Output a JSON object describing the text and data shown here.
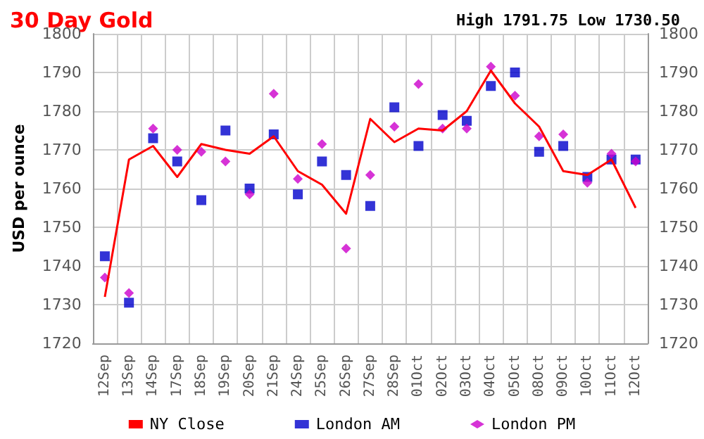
{
  "chart_data": {
    "type": "line",
    "title": "30 Day Gold",
    "annotations": [
      "High 1791.75 Low 1730.50"
    ],
    "ylabel": "USD per ounce",
    "categories": [
      "12Sep",
      "13Sep",
      "14Sep",
      "17Sep",
      "18Sep",
      "19Sep",
      "20Sep",
      "21Sep",
      "24Sep",
      "25Sep",
      "26Sep",
      "27Sep",
      "28Sep",
      "01Oct",
      "02Oct",
      "03Oct",
      "04Oct",
      "05Oct",
      "08Oct",
      "09Oct",
      "10Oct",
      "11Oct",
      "12Oct"
    ],
    "series": [
      {
        "name": "NY Close",
        "marker": "none",
        "color": "#ff0000",
        "values": [
          1732,
          1767.5,
          1771,
          1763,
          1771.5,
          1770,
          1769,
          1773.5,
          1764.5,
          1761,
          1753.5,
          1778,
          1772,
          1775.5,
          1775,
          1780,
          1790.5,
          1782,
          1776,
          1764.5,
          1763.5,
          1767.5,
          1755
        ]
      },
      {
        "name": "London AM",
        "type": "scatter",
        "marker": "square",
        "color": "#0000cc",
        "values": [
          1742.5,
          1730.5,
          1773,
          1767,
          1757,
          1775,
          1760,
          1774,
          1758.5,
          1767,
          1763.5,
          1755.5,
          1781,
          1771,
          1779,
          1777.5,
          1786.5,
          1790,
          1769.5,
          1771,
          1763,
          1767.5,
          1767.5
        ]
      },
      {
        "name": "London PM",
        "type": "scatter",
        "marker": "diamond",
        "color": "#cc00cc",
        "values": [
          1737,
          1733,
          1775.5,
          1770,
          1769.5,
          1767,
          1758.5,
          1784.5,
          1762.5,
          1771.5,
          1744.5,
          1763.5,
          1776,
          1787,
          1775.5,
          1775.5,
          1791.5,
          1784,
          1773.5,
          1774,
          1761.5,
          1769,
          1767
        ]
      }
    ],
    "ylim": [
      1720,
      1800
    ],
    "yticks": [
      1720,
      1730,
      1740,
      1750,
      1760,
      1770,
      1780,
      1790,
      1800
    ],
    "y2lim": [
      1720,
      1800
    ],
    "y2ticks": [
      1720,
      1730,
      1740,
      1750,
      1760,
      1770,
      1780,
      1790,
      1800
    ],
    "grid": true,
    "legend": "bottom"
  }
}
